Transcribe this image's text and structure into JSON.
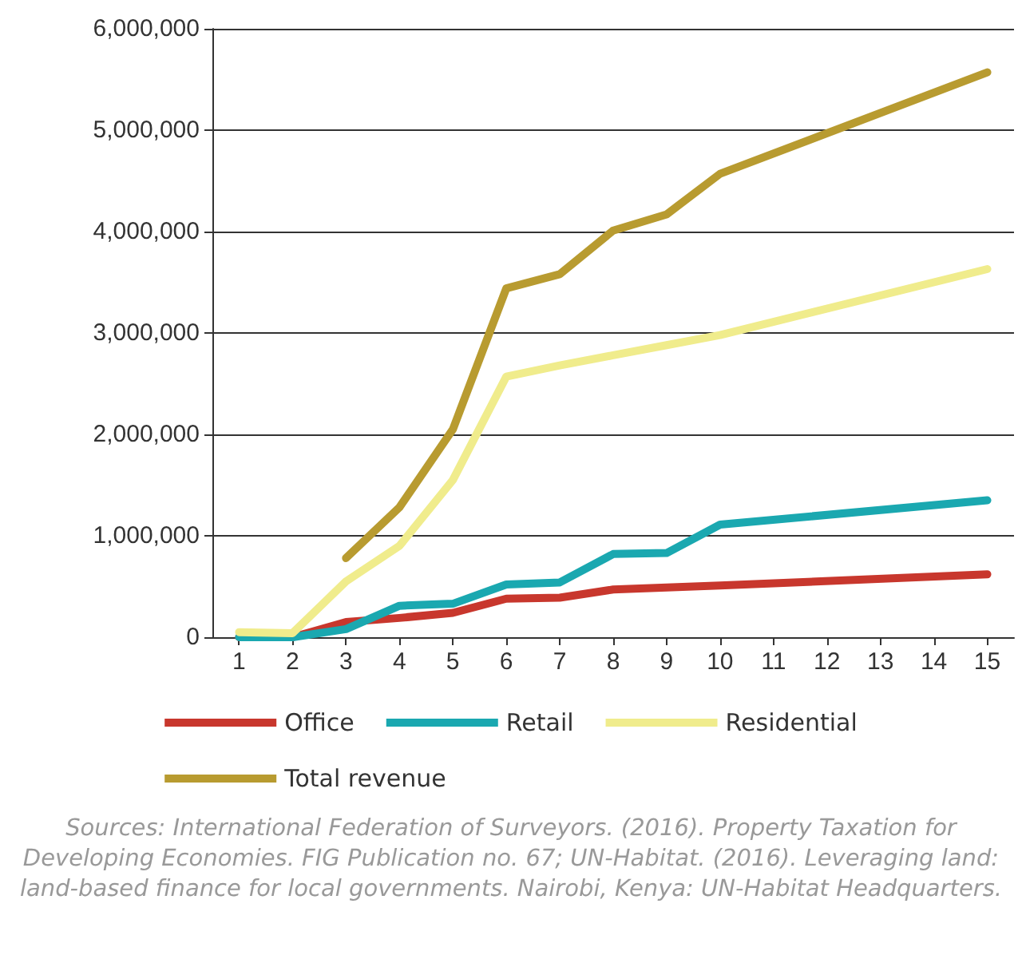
{
  "chart_data": {
    "type": "line",
    "xlim": [
      0.5,
      15.5
    ],
    "xticks": [
      1,
      2,
      3,
      4,
      5,
      6,
      7,
      8,
      9,
      10,
      11,
      12,
      13,
      14,
      15
    ],
    "ylim": [
      0,
      6000000
    ],
    "yticks": [
      {
        "value": 0,
        "label": "0"
      },
      {
        "value": 1000000,
        "label": "1,000,000"
      },
      {
        "value": 2000000,
        "label": "2,000,000"
      },
      {
        "value": 3000000,
        "label": "3,000,000"
      },
      {
        "value": 4000000,
        "label": "4,000,000"
      },
      {
        "value": 5000000,
        "label": "5,000,000"
      },
      {
        "value": 6000000,
        "label": "6,000,000"
      }
    ],
    "grid": "y",
    "legend": "bottom",
    "marker": "none",
    "line_style": "solid",
    "series": [
      {
        "name": "Office",
        "color": "#c8372d",
        "x": [
          1,
          2,
          3,
          4,
          5,
          6,
          7,
          8,
          9,
          10,
          15
        ],
        "values": [
          0,
          0,
          150000,
          190000,
          240000,
          380000,
          390000,
          470000,
          490000,
          510000,
          620000
        ]
      },
      {
        "name": "Retail",
        "color": "#1aa8b0",
        "x": [
          1,
          2,
          3,
          4,
          5,
          6,
          7,
          8,
          9,
          10,
          15
        ],
        "values": [
          0,
          0,
          80000,
          310000,
          330000,
          520000,
          540000,
          820000,
          830000,
          1110000,
          1350000
        ]
      },
      {
        "name": "Residential",
        "color": "#f0ec8c",
        "x": [
          1,
          2,
          3,
          4,
          5,
          6,
          7,
          8,
          9,
          10,
          15
        ],
        "values": [
          50000,
          40000,
          550000,
          900000,
          1550000,
          2570000,
          2680000,
          2780000,
          2880000,
          2980000,
          3630000
        ]
      },
      {
        "name": "Total revenue",
        "color": "#b89b30",
        "x": [
          3,
          4,
          5,
          6,
          7,
          8,
          9,
          10,
          15
        ],
        "values": [
          780000,
          1280000,
          2050000,
          3440000,
          3580000,
          4010000,
          4170000,
          4570000,
          5570000
        ]
      }
    ],
    "annotations": [
      "Sources: International Federation of Surveyors. (2016). Property Taxation for Developing Economies. FIG Publication no. 67; UN-Habitat. (2016). Leveraging land: land-based finance for local governments. Nairobi, Kenya: UN-Habitat Headquarters."
    ]
  }
}
